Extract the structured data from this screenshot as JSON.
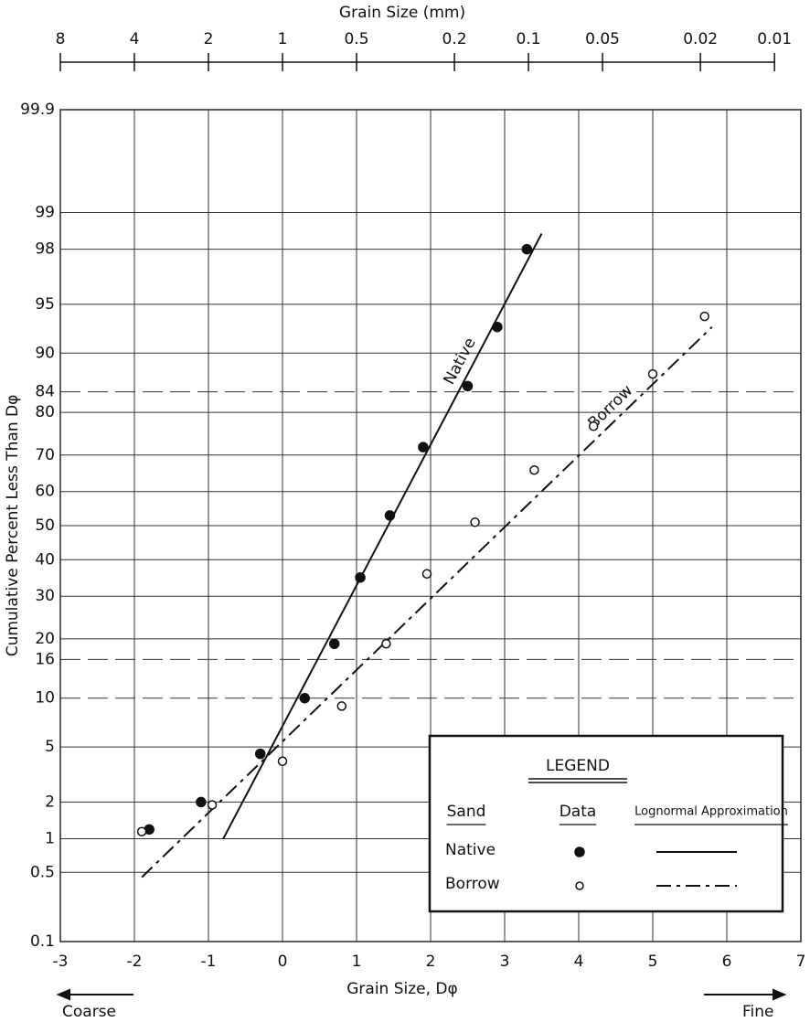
{
  "chart_data": {
    "type": "scatter",
    "yscale": "probability",
    "title": "Grain Size (mm)",
    "xlabel": "Grain Size, Dφ",
    "ylabel": "Cumulative Percent Less Than Dφ",
    "xlim": [
      -3,
      7
    ],
    "xticks": [
      -3,
      -2,
      -1,
      0,
      1,
      2,
      3,
      4,
      5,
      6,
      7
    ],
    "ylim": [
      0.1,
      99.9
    ],
    "yticks": [
      0.1,
      0.5,
      1,
      2,
      5,
      10,
      16,
      20,
      30,
      40,
      50,
      60,
      70,
      80,
      84,
      90,
      95,
      98,
      99,
      99.9
    ],
    "dashed_grid_at": [
      10,
      16,
      84
    ],
    "grid": true,
    "x2lim": [
      8,
      0.01
    ],
    "x2ticks": [
      8,
      4,
      2,
      1,
      0.5,
      0.2,
      0.1,
      0.05,
      0.02,
      0.01
    ],
    "coarse_label": "Coarse",
    "fine_label": "Fine",
    "legend_title": "LEGEND",
    "legend_headers": [
      "Sand",
      "Data",
      "Lognormal Approximation"
    ],
    "series": [
      {
        "name": "Native",
        "marker": "filled",
        "line": "solid",
        "color": "#111",
        "x": [
          -1.8,
          -1.1,
          -0.3,
          0.3,
          0.7,
          1.05,
          1.45,
          1.9,
          2.5,
          2.9,
          3.3
        ],
        "values": [
          1.2,
          2,
          4.5,
          10,
          19,
          35,
          53,
          72,
          85,
          93,
          98
        ],
        "fit": {
          "x": [
            -0.8,
            3.5
          ],
          "values": [
            1.0,
            98.5
          ]
        }
      },
      {
        "name": "Borrow",
        "marker": "open",
        "line": "dashdot",
        "color": "#111",
        "x": [
          -1.9,
          -0.95,
          0,
          0.8,
          1.4,
          1.95,
          2.6,
          3.4,
          4.2,
          5.0,
          5.7
        ],
        "values": [
          1.15,
          1.9,
          4,
          9,
          19,
          36,
          51,
          66,
          77,
          87,
          94
        ],
        "fit": {
          "x": [
            -1.9,
            5.8
          ],
          "values": [
            0.45,
            93
          ]
        }
      }
    ]
  }
}
